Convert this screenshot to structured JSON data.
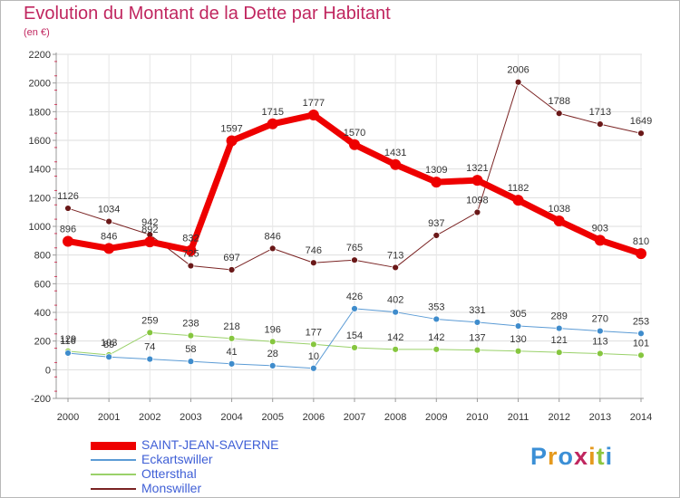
{
  "title": "Evolution du Montant de la Dette par Habitant",
  "subtitle": "(en €)",
  "logo": {
    "text": "Proxiti",
    "letter_colors": [
      "#3b8fd6",
      "#e59a1e",
      "#3b8fd6",
      "#c0265f",
      "#e59a1e",
      "#8dc63f",
      "#3b8fd6"
    ]
  },
  "chart_data": {
    "type": "line",
    "title": "Evolution du Montant de la Dette par Habitant",
    "ylabel": "(en €)",
    "xlabel": "",
    "ylim": [
      -200,
      2200
    ],
    "y_ticks": [
      -200,
      0,
      200,
      400,
      600,
      800,
      1000,
      1200,
      1400,
      1600,
      1800,
      2000,
      2200
    ],
    "grid": true,
    "legend_position": "bottom-left",
    "x": [
      2000,
      2001,
      2002,
      2003,
      2004,
      2005,
      2006,
      2007,
      2008,
      2009,
      2010,
      2011,
      2012,
      2013,
      2014
    ],
    "series": [
      {
        "name": "Monswiller",
        "color": "#7a2323",
        "marker": "#6a1818",
        "width": 1,
        "values": [
          1126,
          1034,
          942,
          725,
          697,
          846,
          746,
          765,
          713,
          937,
          1098,
          2006,
          1788,
          1713,
          1649
        ]
      },
      {
        "name": "Ottersthal",
        "color": "#9ad16a",
        "marker": "#86c63f",
        "width": 1,
        "values": [
          129,
          103,
          259,
          238,
          218,
          196,
          177,
          154,
          142,
          142,
          137,
          130,
          121,
          113,
          101
        ]
      },
      {
        "name": "Eckartswiller",
        "color": "#5b9bd5",
        "marker": "#3f8ccc",
        "width": 1,
        "values": [
          116,
          89,
          74,
          58,
          41,
          28,
          10,
          426,
          402,
          353,
          331,
          305,
          289,
          270,
          253
        ]
      },
      {
        "name": "SAINT-JEAN-SAVERNE",
        "color": "#ee0000",
        "marker": "#ee0000",
        "width": 7,
        "values": [
          896,
          846,
          892,
          832,
          1597,
          1715,
          1777,
          1570,
          1431,
          1309,
          1321,
          1182,
          1038,
          903,
          810
        ]
      }
    ],
    "legend": [
      "SAINT-JEAN-SAVERNE",
      "Eckartswiller",
      "Ottersthal",
      "Monswiller"
    ]
  }
}
